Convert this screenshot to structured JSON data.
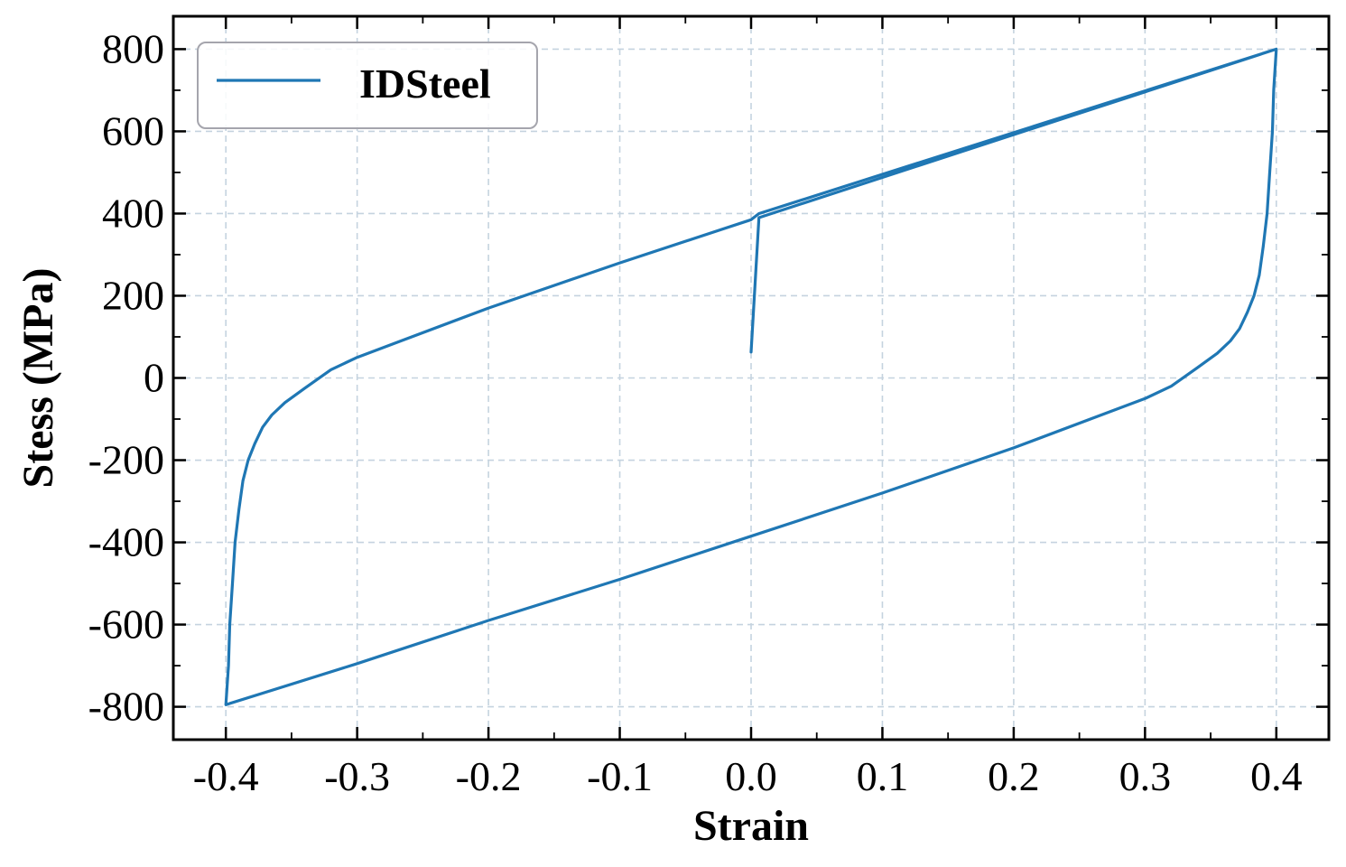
{
  "chart_data": {
    "type": "line",
    "title": "",
    "xlabel": "Strain",
    "ylabel": "Stess (MPa)",
    "xlim": [
      -0.44,
      0.44
    ],
    "ylim": [
      -880,
      880
    ],
    "xticks": [
      -0.4,
      -0.3,
      -0.2,
      -0.1,
      0.0,
      0.1,
      0.2,
      0.3,
      0.4
    ],
    "xtick_labels": [
      "-0.4",
      "-0.3",
      "-0.2",
      "-0.1",
      "0.0",
      "0.1",
      "0.2",
      "0.3",
      "0.4"
    ],
    "yticks": [
      -800,
      -600,
      -400,
      -200,
      0,
      200,
      400,
      600,
      800
    ],
    "ytick_labels": [
      "-800",
      "-600",
      "-400",
      "-200",
      "0",
      "200",
      "400",
      "600",
      "800"
    ],
    "grid": true,
    "legend_position": "upper-left",
    "series": [
      {
        "name": "IDSteel",
        "color": "#1f77b4",
        "x": [
          0.0,
          0.006,
          0.4,
          0.398,
          0.397,
          0.395,
          0.393,
          0.39,
          0.387,
          0.383,
          0.378,
          0.372,
          0.365,
          0.355,
          0.34,
          0.32,
          0.3,
          0.2,
          0.1,
          0.0,
          -0.1,
          -0.2,
          -0.3,
          -0.4,
          -0.398,
          -0.397,
          -0.395,
          -0.393,
          -0.39,
          -0.387,
          -0.383,
          -0.378,
          -0.372,
          -0.365,
          -0.355,
          -0.34,
          -0.32,
          -0.3,
          -0.2,
          -0.1,
          0.0,
          0.006,
          0.4
        ],
        "y": [
          63,
          390,
          800,
          700,
          600,
          500,
          400,
          320,
          250,
          200,
          160,
          120,
          90,
          60,
          25,
          -20,
          -50,
          -170,
          -280,
          -385,
          -490,
          -590,
          -695,
          -795,
          -700,
          -600,
          -500,
          -400,
          -320,
          -250,
          -200,
          -160,
          -120,
          -90,
          -60,
          -25,
          20,
          50,
          170,
          280,
          385,
          400,
          800
        ]
      }
    ]
  }
}
